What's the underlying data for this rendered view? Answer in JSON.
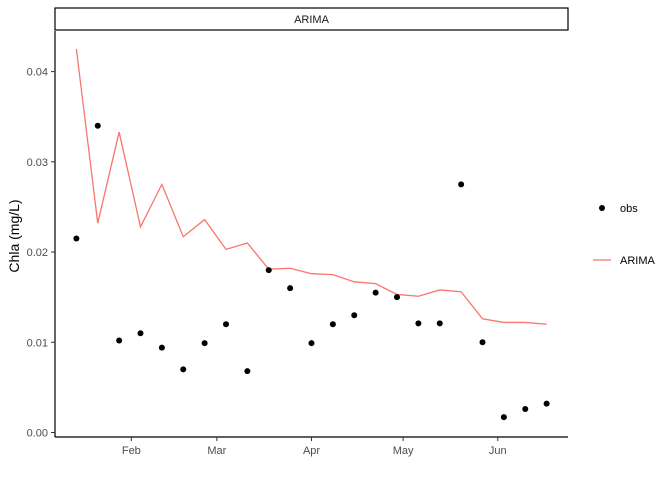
{
  "chart_data": {
    "type": "line",
    "facet_label": "ARIMA",
    "ylabel": "Chla (mg/L)",
    "xlabel": "",
    "ylim": [
      -0.0005,
      0.0445
    ],
    "xlim": [
      "2021-01-07",
      "2021-06-24"
    ],
    "x_ticks": [
      {
        "date": "2021-02-01",
        "label": "Feb"
      },
      {
        "date": "2021-03-01",
        "label": "Mar"
      },
      {
        "date": "2021-04-01",
        "label": "Apr"
      },
      {
        "date": "2021-05-01",
        "label": "May"
      },
      {
        "date": "2021-06-01",
        "label": "Jun"
      }
    ],
    "y_ticks": [
      {
        "value": 0.0,
        "label": "0.00"
      },
      {
        "value": 0.01,
        "label": "0.01"
      },
      {
        "value": 0.02,
        "label": "0.02"
      },
      {
        "value": 0.03,
        "label": "0.03"
      },
      {
        "value": 0.04,
        "label": "0.04"
      }
    ],
    "x": [
      "2021-01-14",
      "2021-01-21",
      "2021-01-28",
      "2021-02-04",
      "2021-02-11",
      "2021-02-18",
      "2021-02-25",
      "2021-03-04",
      "2021-03-11",
      "2021-03-18",
      "2021-03-25",
      "2021-04-01",
      "2021-04-08",
      "2021-04-15",
      "2021-04-22",
      "2021-04-29",
      "2021-05-06",
      "2021-05-13",
      "2021-05-20",
      "2021-05-27",
      "2021-06-03",
      "2021-06-10",
      "2021-06-17"
    ],
    "series": [
      {
        "name": "obs",
        "type": "scatter",
        "color": "#000000",
        "values": [
          0.0215,
          0.034,
          0.0102,
          0.011,
          0.0094,
          0.007,
          0.0099,
          0.012,
          0.0068,
          0.018,
          0.016,
          0.0099,
          0.012,
          0.013,
          0.0155,
          0.015,
          0.0121,
          0.0121,
          0.0275,
          0.01,
          0.0017,
          0.0026,
          0.0032
        ]
      },
      {
        "name": "ARIMA",
        "type": "line",
        "color": "#F8766D",
        "values": [
          0.0425,
          0.0232,
          0.0333,
          0.0228,
          0.0275,
          0.0217,
          0.0236,
          0.0203,
          0.021,
          0.0181,
          0.0182,
          0.0176,
          0.0175,
          0.0167,
          0.0165,
          0.0153,
          0.0151,
          0.0158,
          0.0156,
          0.0126,
          0.0122,
          0.0122,
          0.012
        ]
      }
    ],
    "legend": {
      "position": "right",
      "entries": [
        {
          "label": "obs",
          "kind": "point",
          "color": "#000000"
        },
        {
          "label": "ARIMA",
          "kind": "line",
          "color": "#F8766D"
        }
      ]
    },
    "grid": false
  }
}
